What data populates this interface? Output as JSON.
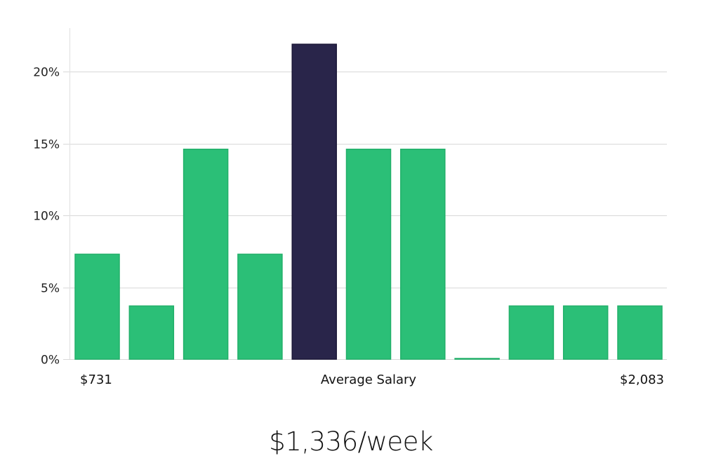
{
  "chart_data": {
    "type": "bar",
    "title": "$1,336/week",
    "xlabel": "Average Salary",
    "x_range_labels": {
      "min": "$731",
      "max": "$2,083"
    },
    "ylabel": "",
    "ylim": [
      0,
      23
    ],
    "yticks": [
      0,
      5,
      10,
      15,
      20
    ],
    "ytick_labels": [
      "0%",
      "5%",
      "10%",
      "15%",
      "20%"
    ],
    "grid": true,
    "values": [
      7.3,
      3.7,
      14.6,
      7.3,
      21.9,
      14.6,
      14.6,
      0,
      3.7,
      3.7,
      3.7
    ],
    "highlight_index": 4,
    "colors": {
      "bar": "#2bbf77",
      "bar_edge": "#22b06a",
      "highlight": "#29254a",
      "highlight_edge": "#1c1838",
      "grid": "#d8d8d8"
    }
  }
}
